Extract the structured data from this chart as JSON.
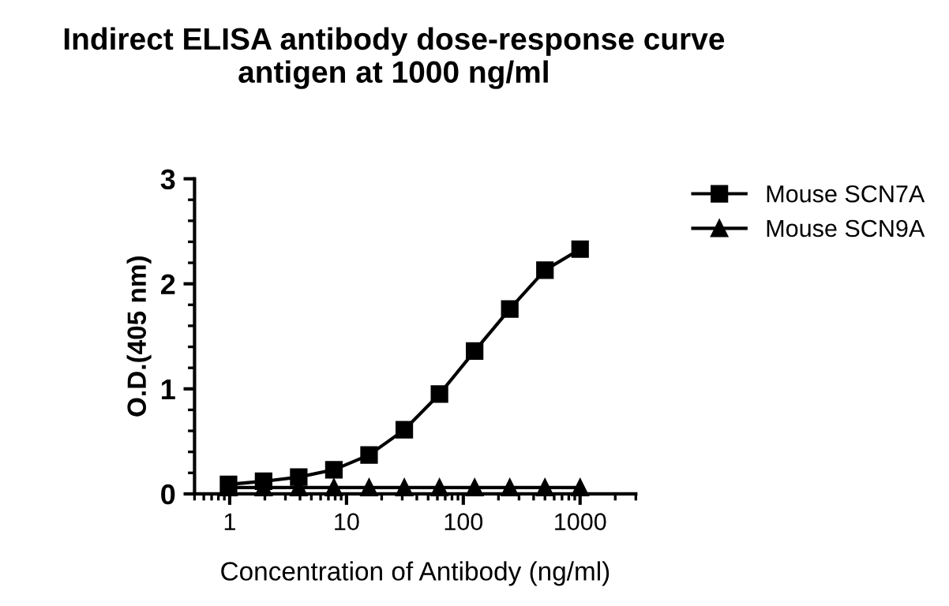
{
  "chart_data": {
    "type": "line",
    "title": "Indirect ELISA antibody dose-response curve\nantigen at 1000 ng/ml",
    "xlabel": "Concentration of Antibody (ng/ml)",
    "ylabel": "O.D.(405 nm)",
    "log": "x",
    "xlim": [
      0.5,
      3000
    ],
    "xticks": [
      1,
      10,
      100,
      1000
    ],
    "ylim": [
      0,
      3
    ],
    "yticks": [
      0,
      1,
      2,
      3
    ],
    "grid": false,
    "legend": "right",
    "line_style": "solid",
    "series": [
      {
        "name": "Mouse SCN7A",
        "color": "#000000",
        "marker": "square",
        "x": [
          0.977,
          1.95,
          3.9,
          7.8,
          15.6,
          31.25,
          62.5,
          125,
          250,
          500,
          1000
        ],
        "values": [
          0.09,
          0.12,
          0.16,
          0.23,
          0.37,
          0.61,
          0.95,
          1.36,
          1.76,
          2.13,
          2.33
        ]
      },
      {
        "name": "Mouse SCN9A",
        "color": "#000000",
        "marker": "triangle",
        "x": [
          0.977,
          1.95,
          3.9,
          7.8,
          15.6,
          31.25,
          62.5,
          125,
          250,
          500,
          1000
        ],
        "values": [
          0.06,
          0.06,
          0.06,
          0.06,
          0.06,
          0.06,
          0.06,
          0.06,
          0.06,
          0.06,
          0.06
        ]
      }
    ]
  }
}
